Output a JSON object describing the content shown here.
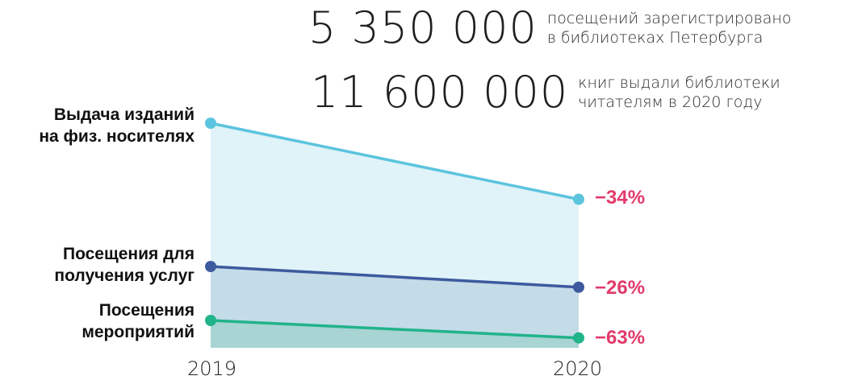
{
  "stats": [
    {
      "number": "5 350 000",
      "text_line1": "посещений зарегистрировано",
      "text_line2": "в библиотеках Петербурга"
    },
    {
      "number": "11 600 000",
      "text_line1": "книг выдали библиотеки",
      "text_line2": "читателям в 2020 году"
    }
  ],
  "chart_data": {
    "type": "area",
    "x": [
      "2019",
      "2020"
    ],
    "series": [
      {
        "name_line1": "Выдача изданий",
        "name_line2": "на физ. носителях",
        "change": "−34%",
        "values": [
          100,
          66
        ],
        "color": "#5cc4de",
        "fill": "#e0f3f8"
      },
      {
        "name_line1": "Посещения для",
        "name_line2": "получения услуг",
        "change": "−26%",
        "values": [
          100,
          74
        ],
        "color": "#3d5a9e",
        "fill": "#c4dbe8"
      },
      {
        "name_line1": "Посещения",
        "name_line2": "мероприятий",
        "change": "−63%",
        "values": [
          100,
          37
        ],
        "color": "#21b38a",
        "fill": "#a8d4d3"
      }
    ],
    "grid": false
  }
}
